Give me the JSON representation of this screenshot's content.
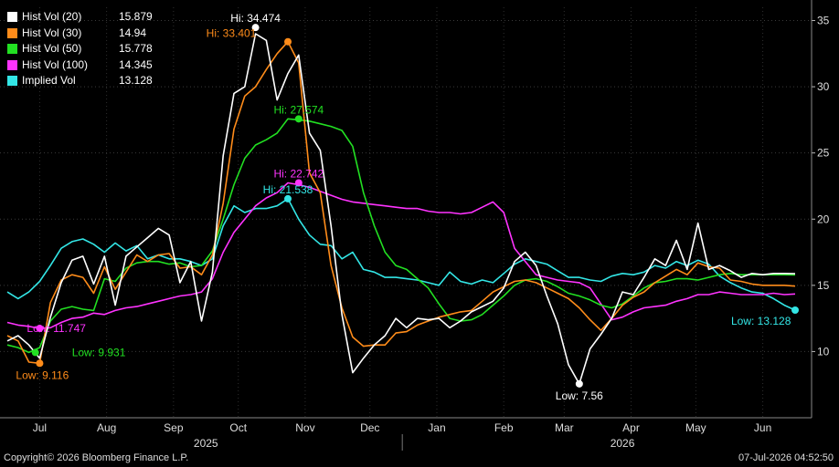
{
  "chart_data": {
    "type": "line",
    "ylim": [
      5,
      36
    ],
    "yticks": [
      10,
      15,
      20,
      25,
      30,
      35
    ],
    "x_range": [
      0,
      365
    ],
    "month_ticks": [
      {
        "label": "Jul",
        "x": 15
      },
      {
        "label": "Aug",
        "x": 46
      },
      {
        "label": "Sep",
        "x": 77
      },
      {
        "label": "Oct",
        "x": 107
      },
      {
        "label": "Nov",
        "x": 138
      },
      {
        "label": "Dec",
        "x": 168
      },
      {
        "label": "Jan",
        "x": 199
      },
      {
        "label": "Feb",
        "x": 230
      },
      {
        "label": "Mar",
        "x": 258
      },
      {
        "label": "Apr",
        "x": 289
      },
      {
        "label": "May",
        "x": 319
      },
      {
        "label": "Jun",
        "x": 350
      }
    ],
    "year_labels": [
      {
        "label": "2025",
        "x": 92
      },
      {
        "label": "2026",
        "x": 285
      }
    ],
    "year_divider_x": 183,
    "legend_position": "top-left",
    "series": [
      {
        "name": "Hist Vol (20)",
        "last": "15.879",
        "color": "#ffffff",
        "x": [
          0,
          5,
          10,
          15,
          20,
          25,
          30,
          35,
          40,
          45,
          50,
          55,
          60,
          65,
          70,
          75,
          80,
          85,
          90,
          95,
          100,
          105,
          110,
          115,
          120,
          125,
          130,
          135,
          140,
          145,
          150,
          155,
          160,
          165,
          170,
          175,
          180,
          185,
          190,
          195,
          200,
          205,
          210,
          215,
          220,
          225,
          230,
          235,
          240,
          245,
          250,
          255,
          260,
          265,
          270,
          275,
          280,
          285,
          290,
          295,
          300,
          305,
          310,
          315,
          320,
          325,
          330,
          335,
          340,
          345,
          350,
          355,
          360,
          365
        ],
        "values": [
          10.8,
          11.2,
          10.5,
          9.5,
          12.6,
          15.2,
          16.9,
          17.2,
          15.1,
          17.2,
          13.5,
          17.2,
          17.9,
          18.6,
          19.3,
          18.8,
          15.2,
          16.8,
          12.3,
          16.0,
          24.8,
          29.5,
          30.0,
          34.0,
          33.5,
          29.0,
          31.0,
          32.4,
          26.5,
          25.2,
          19.5,
          12.8,
          8.4,
          9.5,
          10.5,
          11.2,
          12.5,
          11.8,
          12.5,
          12.4,
          12.5,
          11.8,
          12.3,
          13.0,
          13.4,
          13.8,
          14.8,
          16.8,
          17.5,
          16.5,
          14.2,
          12.1,
          9.0,
          7.56,
          10.2,
          11.3,
          12.5,
          14.5,
          14.3,
          15.6,
          17.0,
          16.5,
          18.4,
          16.2,
          19.7,
          16.2,
          16.5,
          16.1,
          15.6,
          15.9,
          15.8,
          15.9,
          15.9,
          15.879
        ]
      },
      {
        "name": "Hist Vol (30)",
        "last": "14.94",
        "color": "#ff8c1a",
        "x": [
          0,
          5,
          10,
          15,
          20,
          25,
          30,
          35,
          40,
          45,
          50,
          55,
          60,
          65,
          70,
          75,
          80,
          85,
          90,
          95,
          100,
          105,
          110,
          115,
          120,
          125,
          130,
          135,
          140,
          145,
          150,
          155,
          160,
          165,
          170,
          175,
          180,
          185,
          190,
          195,
          200,
          205,
          210,
          215,
          220,
          225,
          230,
          235,
          240,
          245,
          250,
          255,
          260,
          265,
          270,
          275,
          280,
          285,
          290,
          295,
          300,
          305,
          310,
          315,
          320,
          325,
          330,
          335,
          340,
          345,
          350,
          355,
          360,
          365
        ],
        "values": [
          11.2,
          10.8,
          9.2,
          9.116,
          13.7,
          15.4,
          15.8,
          15.6,
          14.4,
          16.4,
          14.7,
          16.0,
          17.3,
          16.8,
          17.3,
          17.4,
          16.3,
          16.4,
          15.8,
          17.3,
          21.2,
          26.8,
          29.3,
          30.0,
          31.3,
          32.5,
          33.401,
          31.8,
          23.5,
          22.0,
          16.5,
          13.3,
          11.1,
          10.4,
          10.5,
          10.5,
          11.4,
          11.5,
          12.0,
          12.3,
          12.6,
          12.8,
          13.0,
          13.1,
          13.8,
          14.5,
          14.9,
          15.3,
          15.4,
          15.2,
          14.8,
          14.4,
          14.0,
          13.3,
          12.4,
          11.6,
          12.5,
          13.5,
          14.1,
          14.5,
          15.2,
          15.7,
          16.2,
          15.8,
          16.7,
          16.4,
          16.3,
          15.4,
          15.3,
          15.1,
          15.0,
          15.0,
          15.0,
          14.94
        ]
      },
      {
        "name": "Hist Vol (50)",
        "last": "15.778",
        "color": "#22e022",
        "x": [
          0,
          5,
          10,
          15,
          20,
          25,
          30,
          35,
          40,
          45,
          50,
          55,
          60,
          65,
          70,
          75,
          80,
          85,
          90,
          95,
          100,
          105,
          110,
          115,
          120,
          125,
          130,
          135,
          140,
          145,
          150,
          155,
          160,
          165,
          170,
          175,
          180,
          185,
          190,
          195,
          200,
          205,
          210,
          215,
          220,
          225,
          230,
          235,
          240,
          245,
          250,
          255,
          260,
          265,
          270,
          275,
          280,
          285,
          290,
          295,
          300,
          305,
          310,
          315,
          320,
          325,
          330,
          335,
          340,
          345,
          350,
          355,
          360,
          365
        ],
        "values": [
          10.5,
          10.3,
          9.931,
          10.3,
          12.3,
          13.2,
          13.4,
          13.2,
          13.1,
          15.5,
          15.3,
          16.3,
          16.7,
          16.8,
          16.8,
          16.6,
          16.7,
          16.4,
          16.5,
          17.6,
          20.0,
          22.6,
          24.6,
          25.6,
          26.0,
          26.5,
          27.574,
          27.5,
          27.4,
          27.2,
          27.0,
          26.7,
          25.5,
          22.0,
          19.5,
          17.5,
          16.5,
          16.2,
          15.5,
          14.8,
          13.6,
          12.5,
          12.3,
          12.4,
          12.8,
          13.5,
          14.2,
          15.0,
          15.4,
          15.5,
          15.3,
          14.9,
          14.4,
          14.2,
          13.9,
          13.5,
          13.3,
          13.6,
          14.2,
          14.8,
          15.2,
          15.3,
          15.5,
          15.5,
          15.4,
          15.6,
          15.8,
          15.9,
          15.8,
          15.8,
          15.8,
          15.8,
          15.8,
          15.778
        ]
      },
      {
        "name": "Hist Vol (100)",
        "last": "14.345",
        "color": "#ff33ff",
        "x": [
          0,
          5,
          10,
          15,
          20,
          25,
          30,
          35,
          40,
          45,
          50,
          55,
          60,
          65,
          70,
          75,
          80,
          85,
          90,
          95,
          100,
          105,
          110,
          115,
          120,
          125,
          130,
          135,
          140,
          145,
          150,
          155,
          160,
          165,
          170,
          175,
          180,
          185,
          190,
          195,
          200,
          205,
          210,
          215,
          220,
          225,
          230,
          235,
          240,
          245,
          250,
          255,
          260,
          265,
          270,
          275,
          280,
          285,
          290,
          295,
          300,
          305,
          310,
          315,
          320,
          325,
          330,
          335,
          340,
          345,
          350,
          355,
          360,
          365
        ],
        "values": [
          12.2,
          12.0,
          11.9,
          11.747,
          11.8,
          12.2,
          12.5,
          12.6,
          12.9,
          12.8,
          13.1,
          13.3,
          13.4,
          13.6,
          13.8,
          14.0,
          14.2,
          14.3,
          14.5,
          15.5,
          17.5,
          19.0,
          20.0,
          21.0,
          21.6,
          22.0,
          22.742,
          22.6,
          22.4,
          22.1,
          21.8,
          21.5,
          21.3,
          21.2,
          21.1,
          21.0,
          20.9,
          20.8,
          20.8,
          20.6,
          20.5,
          20.5,
          20.4,
          20.5,
          20.9,
          21.3,
          20.5,
          17.8,
          16.8,
          15.8,
          15.6,
          15.4,
          15.3,
          15.2,
          14.8,
          13.6,
          12.4,
          12.6,
          13.0,
          13.3,
          13.4,
          13.5,
          13.8,
          14.0,
          14.3,
          14.3,
          14.5,
          14.4,
          14.3,
          14.3,
          14.3,
          14.4,
          14.3,
          14.345
        ]
      },
      {
        "name": "Implied Vol",
        "last": "13.128",
        "color": "#33e6e6",
        "x": [
          0,
          5,
          10,
          15,
          20,
          25,
          30,
          35,
          40,
          45,
          50,
          55,
          60,
          65,
          70,
          75,
          80,
          85,
          90,
          95,
          100,
          105,
          110,
          115,
          120,
          125,
          130,
          135,
          140,
          145,
          150,
          155,
          160,
          165,
          170,
          175,
          180,
          185,
          190,
          195,
          200,
          205,
          210,
          215,
          220,
          225,
          230,
          235,
          240,
          245,
          250,
          255,
          260,
          265,
          270,
          275,
          280,
          285,
          290,
          295,
          300,
          305,
          310,
          315,
          320,
          325,
          330,
          335,
          340,
          345,
          350,
          355,
          360,
          365
        ],
        "values": [
          14.5,
          14.0,
          14.5,
          15.3,
          16.5,
          17.8,
          18.3,
          18.5,
          18.1,
          17.5,
          18.2,
          17.6,
          18.0,
          17.0,
          17.3,
          17.0,
          17.0,
          16.8,
          16.5,
          17.0,
          19.5,
          21.0,
          20.5,
          20.8,
          20.8,
          21.0,
          21.538,
          20.0,
          18.8,
          18.1,
          18.0,
          17.0,
          17.5,
          16.2,
          16.0,
          15.6,
          15.6,
          15.5,
          15.4,
          15.2,
          15.0,
          16.0,
          15.3,
          15.1,
          15.4,
          15.2,
          15.9,
          16.6,
          17.0,
          16.8,
          16.6,
          16.1,
          15.6,
          15.6,
          15.4,
          15.3,
          15.7,
          15.9,
          15.8,
          16.0,
          16.5,
          16.3,
          16.8,
          16.5,
          16.9,
          16.6,
          15.7,
          15.2,
          14.8,
          14.5,
          14.4,
          14.0,
          13.5,
          13.128
        ]
      }
    ],
    "annotations": [
      {
        "label": "Hi: 34.474",
        "series": 0,
        "x": 115,
        "y": 34.474,
        "color": "#ffffff",
        "pos": "above"
      },
      {
        "label": "Hi: 33.401",
        "series": 1,
        "x": 130,
        "y": 33.401,
        "color": "#ff8c1a",
        "pos": "left"
      },
      {
        "label": "Hi: 27.574",
        "series": 2,
        "x": 135,
        "y": 27.574,
        "color": "#22e022",
        "pos": "above"
      },
      {
        "label": "Hi: 22.742",
        "series": 3,
        "x": 135,
        "y": 22.742,
        "color": "#ff33ff",
        "pos": "above"
      },
      {
        "label": "Hi: 21.538",
        "series": 4,
        "x": 130,
        "y": 21.538,
        "color": "#33e6e6",
        "pos": "above"
      },
      {
        "label": "Low: 11.747",
        "series": 3,
        "x": 15,
        "y": 11.747,
        "color": "#ff33ff",
        "pos": "right"
      },
      {
        "label": "Low: 9.931",
        "series": 2,
        "x": 13,
        "y": 9.931,
        "color": "#22e022",
        "pos": "right-low"
      },
      {
        "label": "Low: 9.116",
        "series": 1,
        "x": 15,
        "y": 9.116,
        "color": "#ff8c1a",
        "pos": "below"
      },
      {
        "label": "Low: 7.56",
        "series": 0,
        "x": 265,
        "y": 7.56,
        "color": "#ffffff",
        "pos": "below"
      },
      {
        "label": "Low: 13.128",
        "series": 4,
        "x": 365,
        "y": 13.128,
        "color": "#33e6e6",
        "pos": "left-below"
      }
    ]
  },
  "footer": {
    "copyright": "Copyright© 2026 Bloomberg Finance L.P.",
    "timestamp": "07-Jul-2026 04:52:50"
  }
}
